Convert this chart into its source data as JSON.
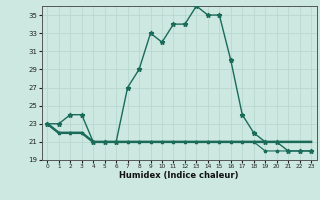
{
  "title": "",
  "xlabel": "Humidex (Indice chaleur)",
  "background_color": "#cce8e0",
  "grid_color": "#b8d8d0",
  "line_color": "#1a6b5a",
  "x_values": [
    0,
    1,
    2,
    3,
    4,
    5,
    6,
    7,
    8,
    9,
    10,
    11,
    12,
    13,
    14,
    15,
    16,
    17,
    18,
    19,
    20,
    21,
    22,
    23
  ],
  "y_main": [
    23,
    23,
    24,
    24,
    21,
    21,
    21,
    27,
    29,
    33,
    32,
    34,
    34,
    36,
    35,
    35,
    30,
    24,
    22,
    21,
    21,
    20,
    20,
    20
  ],
  "y_line2": [
    23,
    22,
    22,
    22,
    21,
    21,
    21,
    21,
    21,
    21,
    21,
    21,
    21,
    21,
    21,
    21,
    21,
    21,
    21,
    21,
    21,
    21,
    21,
    21
  ],
  "y_line3": [
    23,
    22,
    22,
    22,
    21,
    21,
    21,
    21,
    21,
    21,
    21,
    21,
    21,
    21,
    21,
    21,
    21,
    21,
    21,
    20,
    20,
    20,
    20,
    20
  ],
  "ylim": [
    19,
    36
  ],
  "xlim": [
    -0.5,
    23.5
  ],
  "yticks": [
    19,
    21,
    23,
    25,
    27,
    29,
    31,
    33,
    35
  ],
  "xticks": [
    0,
    1,
    2,
    3,
    4,
    5,
    6,
    7,
    8,
    9,
    10,
    11,
    12,
    13,
    14,
    15,
    16,
    17,
    18,
    19,
    20,
    21,
    22,
    23
  ]
}
